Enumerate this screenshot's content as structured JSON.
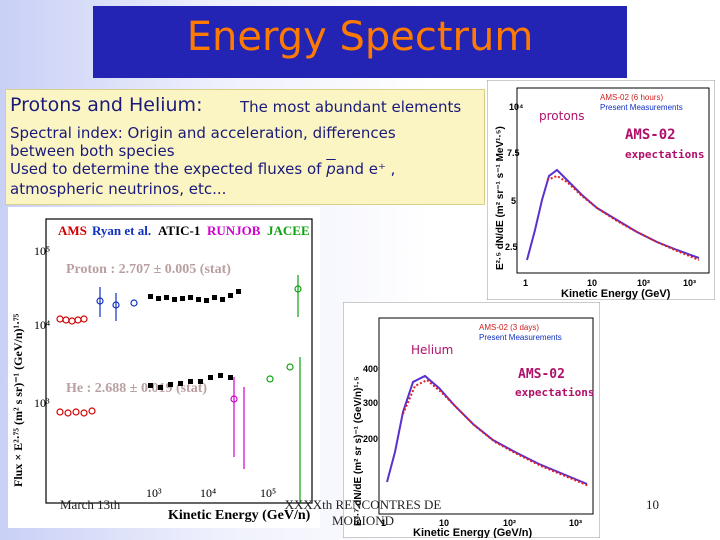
{
  "slide": {
    "title": "Energy Spectrum",
    "heading": "Protons and Helium:",
    "heading_sub": "The most abundant elements",
    "line1": "Spectral index: Origin and acceleration, differences",
    "line2": "between both species",
    "line3a": "Used to determine the expected fluxes of",
    "line3_pbar": "p",
    "line3b": "and e⁺ ,",
    "line4": "atmospheric neutrinos,  etc..."
  },
  "footer": {
    "date": "March 13th",
    "conference_line1": "XXXXth RENCONTRES DE",
    "conference_line2": "MORIOND",
    "page": "10"
  },
  "colors": {
    "title_bg": "#2323b4",
    "title_fg": "#ff7a00",
    "info_bg": "#fbf5c4",
    "text_navy": "#1a1a7a"
  },
  "left_plot": {
    "legend": [
      "AMS",
      "Ryan et al.",
      "ATIC-1",
      "RUNJOB",
      "JACEE"
    ],
    "legend_colors": [
      "#d00000",
      "#1030c0",
      "#000000",
      "#d000d0",
      "#10a010"
    ],
    "proton_label": "Proton : 2.707 ± 0.005 (stat)",
    "helium_label": "He : 2.688 ± 0.019 (stat)",
    "ylabel": "Flux × E²·⁷⁵ (m² s sr)⁻¹ (GeV/n)¹·⁷⁵",
    "xlabel": "Kinetic Energy (GeV/n)",
    "yticks": [
      "10⁵",
      "10⁴",
      "10³"
    ],
    "xticks": [
      "10³",
      "10⁴",
      "10⁵"
    ]
  },
  "right_top_plot": {
    "label": "protons",
    "expect_title": "AMS-02",
    "expect_sub": "expectations",
    "legend": [
      "AMS-02 (6 hours)",
      "Present Measurements"
    ],
    "ylabel": "E²·⁵ dN/dE (m² sr⁻¹ s⁻¹ MeV¹·⁵)",
    "xlabel": "Kinetic Energy (GeV)",
    "yticks": [
      "10⁴",
      "7.5",
      "5",
      "2.5"
    ],
    "xticks": [
      "1",
      "10",
      "10²",
      "10³"
    ]
  },
  "right_bottom_plot": {
    "label": "Helium",
    "expect_title": "AMS-02",
    "expect_sub": "expectations",
    "legend": [
      "AMS-02 (3 days)",
      "Present Measurements"
    ],
    "ylabel": "E²·⁷ dN/dE (m² sr s)⁻¹ (GeV/n)¹·⁵",
    "xlabel": "Kinetic Energy (GeV/n)",
    "yticks": [
      "400",
      "300",
      "200"
    ],
    "xticks": [
      "1",
      "10",
      "10²",
      "10³"
    ]
  }
}
